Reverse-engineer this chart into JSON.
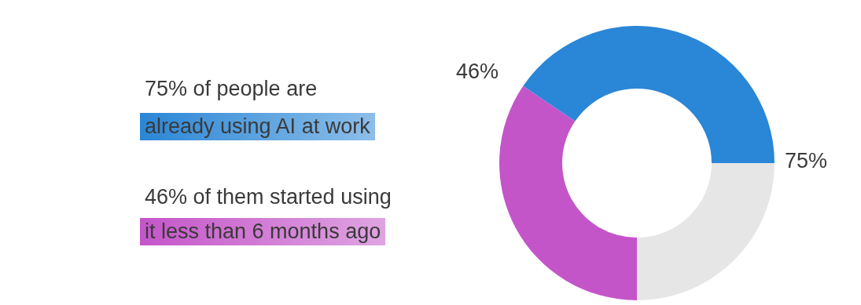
{
  "chart_data": {
    "type": "donut",
    "categories": [
      null,
      null,
      null
    ],
    "values": [
      34.5,
      40.5,
      25
    ],
    "colors": [
      "#c455c9",
      "#2a86d6",
      "#e6e6e6"
    ],
    "annotations": [
      "75% of people are",
      "already using AI at work",
      "46% of them started using",
      "it less than 6 months ago",
      "46%",
      "75%"
    ]
  }
}
